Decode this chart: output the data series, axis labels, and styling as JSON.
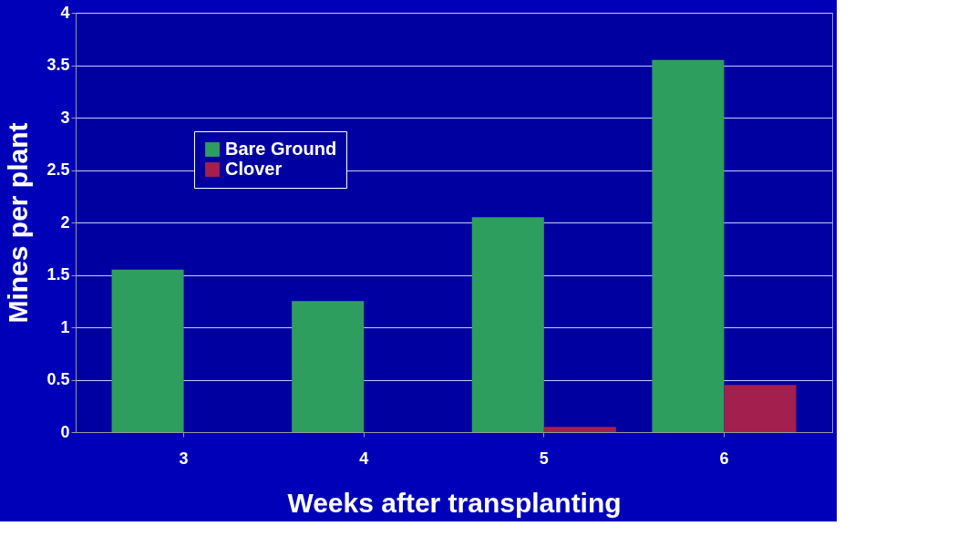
{
  "chart_data": {
    "type": "bar",
    "xlabel": "Weeks after transplanting",
    "ylabel": "Mines per plant",
    "categories": [
      "3",
      "4",
      "5",
      "6"
    ],
    "series": [
      {
        "name": "Bare Ground",
        "color": "#2e9e5e",
        "values": [
          1.55,
          1.25,
          2.05,
          3.55
        ]
      },
      {
        "name": "Clover",
        "color": "#a3204e",
        "values": [
          0,
          0,
          0.05,
          0.45
        ]
      }
    ],
    "ylim": [
      0,
      4
    ],
    "yticks": [
      0,
      0.5,
      1,
      1.5,
      2,
      2.5,
      3,
      3.5,
      4
    ],
    "grid": "y",
    "legend": "top left"
  }
}
